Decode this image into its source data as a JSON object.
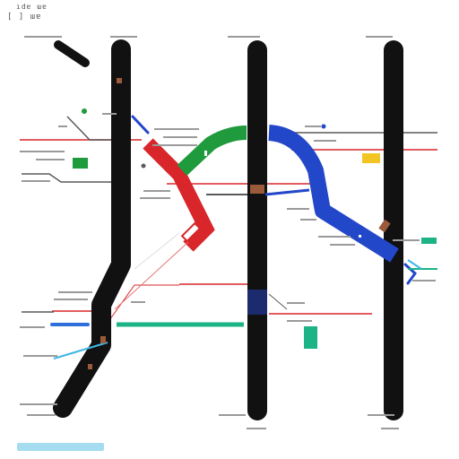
{
  "header": {
    "top_left": "ıdɐ ɯɐ",
    "corner": "[ ]  ɯɐ"
  },
  "colors": {
    "black": "#111111",
    "red": "#d8262a",
    "green": "#1f9a3c",
    "blue": "#2347c9",
    "teal": "#1cb386",
    "cyan": "#3fb7e6",
    "yellow": "#f2c524",
    "brown": "#9b5a3a",
    "grey": "#5a5a5a",
    "legend": "#a6dcef"
  },
  "icons": {
    "legend": "legend-bar-icon",
    "marker": "pin-marker-icon"
  }
}
